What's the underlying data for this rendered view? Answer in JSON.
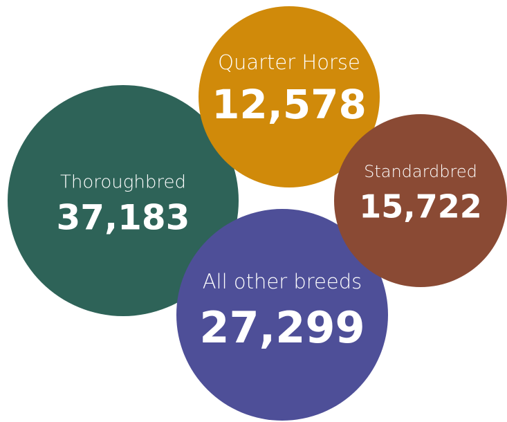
{
  "chart_data": {
    "type": "bubble",
    "categories": [
      "Thoroughbred",
      "Quarter Horse",
      "All other breeds",
      "Standardbred"
    ],
    "values": [
      37183,
      12578,
      27299,
      15722
    ],
    "value_labels": [
      "37,183",
      "12,578",
      "27,299",
      "15,722"
    ],
    "colors": [
      "#2e6358",
      "#d08a0a",
      "#4e4f98",
      "#8a4a34"
    ]
  }
}
